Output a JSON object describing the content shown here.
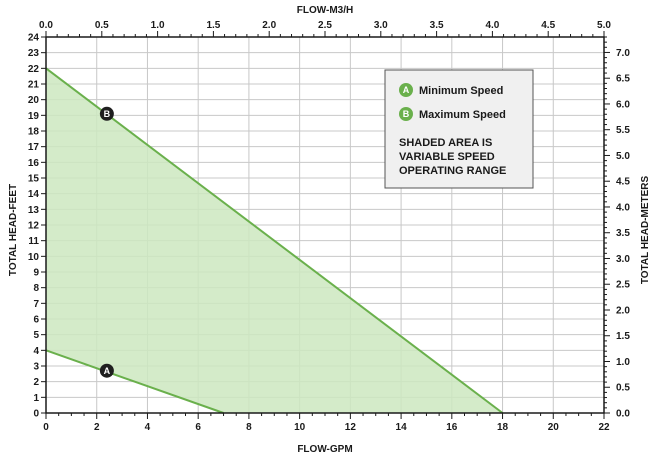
{
  "chart_data": {
    "type": "area",
    "title": "",
    "x_bottom": {
      "label": "FLOW-GPM",
      "min": 0,
      "max": 22,
      "ticks": [
        0,
        2,
        4,
        6,
        8,
        10,
        12,
        14,
        16,
        18,
        20,
        22
      ]
    },
    "x_top": {
      "label": "FLOW-M3/H",
      "min": 0,
      "max": 5.0,
      "ticks": [
        "0.0",
        "0.5",
        "1.0",
        "1.5",
        "2.0",
        "2.5",
        "3.0",
        "3.5",
        "4.0",
        "4.5",
        "5.0"
      ]
    },
    "y_left": {
      "label": "TOTAL HEAD-FEET",
      "min": 0,
      "max": 24,
      "ticks": [
        0,
        1,
        2,
        3,
        4,
        5,
        6,
        7,
        8,
        9,
        10,
        11,
        12,
        13,
        14,
        15,
        16,
        17,
        18,
        19,
        20,
        21,
        22,
        23,
        24
      ]
    },
    "y_right": {
      "label": "TOTAL HEAD-METERS",
      "min": 0,
      "max": 7.3,
      "ticks": [
        "0.0",
        "0.5",
        "1.0",
        "1.5",
        "2.0",
        "2.5",
        "3.0",
        "3.5",
        "4.0",
        "4.5",
        "5.0",
        "5.5",
        "6.0",
        "6.5",
        "7.0"
      ]
    },
    "grid": true,
    "series": [
      {
        "name": "Minimum Speed",
        "marker": "A",
        "x": [
          0,
          7
        ],
        "y": [
          4,
          0
        ],
        "marker_at": [
          2.4,
          2.7
        ]
      },
      {
        "name": "Maximum Speed",
        "marker": "B",
        "x": [
          0,
          18
        ],
        "y": [
          22,
          0
        ],
        "marker_at": [
          2.4,
          19.1
        ]
      }
    ],
    "shaded_area_note": [
      "SHADED AREA IS",
      "VARIABLE SPEED",
      "OPERATING RANGE"
    ],
    "legend_position": "top-right",
    "colors": {
      "line": "#6ab04c",
      "fill": "#cde8bf",
      "marker": "#1f1f1f",
      "legend_circle": "#6ab04c",
      "grid": "#c8c8c8"
    }
  }
}
